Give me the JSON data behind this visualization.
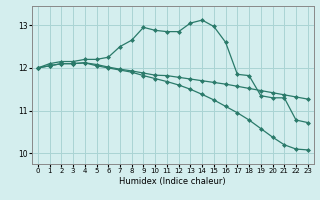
{
  "title": "",
  "xlabel": "Humidex (Indice chaleur)",
  "ylabel": "",
  "background_color": "#d4eeee",
  "grid_color": "#aad4d4",
  "line_color": "#2a7a6a",
  "xlim": [
    -0.5,
    23.5
  ],
  "ylim": [
    9.75,
    13.45
  ],
  "yticks": [
    10,
    11,
    12,
    13
  ],
  "xticks": [
    0,
    1,
    2,
    3,
    4,
    5,
    6,
    7,
    8,
    9,
    10,
    11,
    12,
    13,
    14,
    15,
    16,
    17,
    18,
    19,
    20,
    21,
    22,
    23
  ],
  "series": [
    {
      "x": [
        0,
        1,
        2,
        3,
        4,
        5,
        6,
        7,
        8,
        9,
        10,
        11,
        12,
        13,
        14,
        15,
        16,
        17,
        18,
        19,
        20,
        21,
        22,
        23
      ],
      "y": [
        12.0,
        12.1,
        12.15,
        12.15,
        12.2,
        12.2,
        12.25,
        12.5,
        12.65,
        12.95,
        12.88,
        12.85,
        12.85,
        13.05,
        13.12,
        12.97,
        12.6,
        11.85,
        11.82,
        11.35,
        11.3,
        11.3,
        10.78,
        10.72
      ]
    },
    {
      "x": [
        0,
        1,
        2,
        3,
        4,
        5,
        6,
        7,
        8,
        9,
        10,
        11,
        12,
        13,
        14,
        15,
        16,
        17,
        18,
        19,
        20,
        21,
        22,
        23
      ],
      "y": [
        12.0,
        12.05,
        12.1,
        12.1,
        12.12,
        12.08,
        12.02,
        11.97,
        11.93,
        11.88,
        11.83,
        11.82,
        11.78,
        11.74,
        11.7,
        11.66,
        11.62,
        11.57,
        11.52,
        11.47,
        11.42,
        11.37,
        11.32,
        11.27
      ]
    },
    {
      "x": [
        0,
        1,
        2,
        3,
        4,
        5,
        6,
        7,
        8,
        9,
        10,
        11,
        12,
        13,
        14,
        15,
        16,
        17,
        18,
        19,
        20,
        21,
        22,
        23
      ],
      "y": [
        12.0,
        12.05,
        12.1,
        12.1,
        12.12,
        12.05,
        12.0,
        11.95,
        11.9,
        11.82,
        11.75,
        11.68,
        11.6,
        11.5,
        11.38,
        11.25,
        11.1,
        10.95,
        10.78,
        10.58,
        10.38,
        10.2,
        10.1,
        10.08
      ]
    }
  ]
}
